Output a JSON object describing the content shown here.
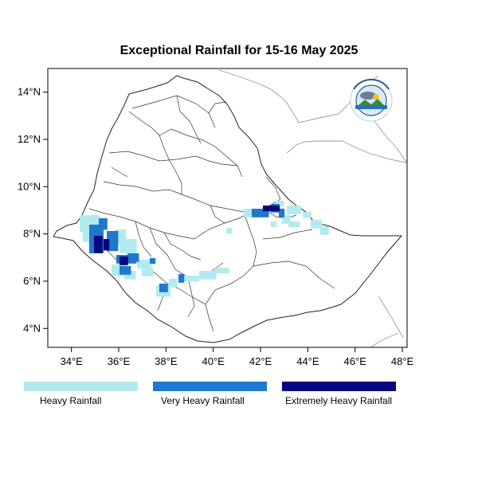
{
  "title": "Exceptional Rainfall for 15-16 May 2025",
  "map": {
    "lon_range": [
      33,
      48.2
    ],
    "lat_range": [
      3.2,
      15
    ],
    "x_ticks": [
      "34°E",
      "36°E",
      "38°E",
      "40°E",
      "42°E",
      "44°E",
      "46°E",
      "48°E"
    ],
    "y_ticks": [
      "4°N",
      "6°N",
      "8°N",
      "10°N",
      "12°N",
      "14°N"
    ],
    "logo_icon": "meteorology-institute-logo"
  },
  "legend": {
    "items": [
      {
        "label": "Heavy Rainfall",
        "color": "#b2ebef"
      },
      {
        "label": "Very Heavy Rainfall",
        "color": "#1f78cd"
      },
      {
        "label": "Extremely Heavy Rainfall",
        "color": "#08087e"
      }
    ]
  },
  "colors": {
    "border": "#222222",
    "neighbor": "#9a9a9a",
    "frame": "#000000"
  }
}
